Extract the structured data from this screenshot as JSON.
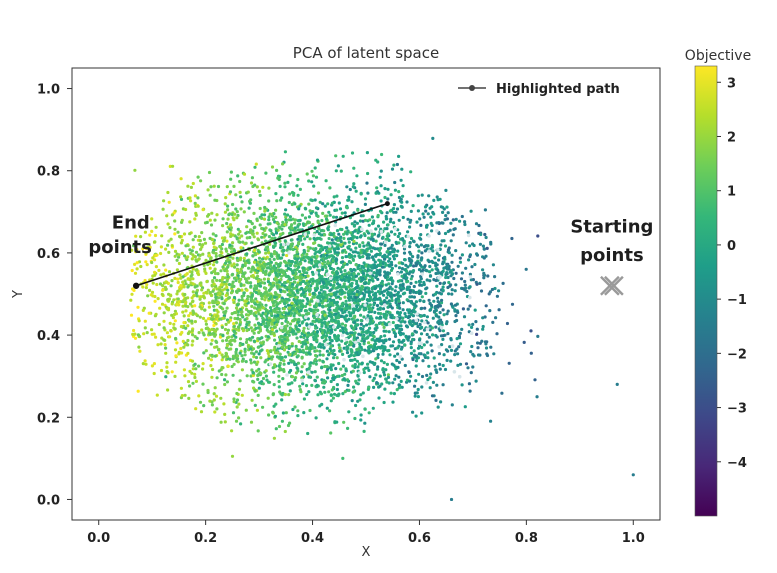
{
  "chart_data": {
    "type": "scatter",
    "title": "PCA of latent space",
    "xlabel": "X",
    "ylabel": "Y",
    "xlim": [
      -0.05,
      1.05
    ],
    "ylim": [
      -0.05,
      1.05
    ],
    "xticks": [
      "0.0",
      "0.2",
      "0.4",
      "0.6",
      "0.8",
      "1.0"
    ],
    "xtick_values": [
      0.0,
      0.2,
      0.4,
      0.6,
      0.8,
      1.0
    ],
    "yticks": [
      "0.0",
      "0.2",
      "0.4",
      "0.6",
      "0.8",
      "1.0"
    ],
    "ytick_values": [
      0.0,
      0.2,
      0.4,
      0.6,
      0.8,
      1.0
    ],
    "grid": false,
    "legend": {
      "label": "Highlighted path",
      "placement": "top-right"
    },
    "colorbar": {
      "label": "Objective",
      "range": [
        -5,
        3.3
      ],
      "ticks": [
        "3",
        "2",
        "1",
        "0",
        "−1",
        "−2",
        "−3",
        "−4"
      ],
      "tick_values": [
        3,
        2,
        1,
        0,
        -1,
        -2,
        -3,
        -4
      ],
      "colormap": "viridis"
    },
    "cloud": {
      "center_x": 0.4,
      "center_y": 0.5,
      "extent_x": [
        0.08,
        0.8
      ],
      "extent_y": [
        0.15,
        0.93
      ],
      "objective_trend": "high on left (~2.5), low on right (~-2.5)"
    },
    "highlighted_path": {
      "start": [
        0.54,
        0.72
      ],
      "end": [
        0.07,
        0.52
      ],
      "color": "#111111"
    },
    "starting_points_marker": {
      "x": 0.96,
      "y": 0.52,
      "color": "#9a9a9a"
    },
    "annotations": [
      {
        "text": "End",
        "x": 0.06,
        "y": 0.66
      },
      {
        "text": "points",
        "x": 0.04,
        "y": 0.6
      },
      {
        "text": "Starting",
        "x": 0.96,
        "y": 0.65
      },
      {
        "text": "points",
        "x": 0.96,
        "y": 0.58
      }
    ]
  }
}
